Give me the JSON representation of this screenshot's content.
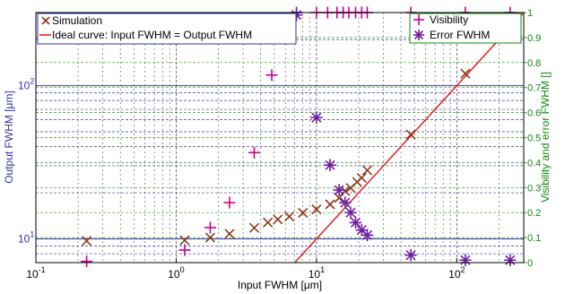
{
  "chart_data": {
    "type": "scatter",
    "xlabel": "Input FWHM [μm]",
    "ylabel_left": "Output FWHM [μm]",
    "ylabel_right": "Visibility and error FWHM []",
    "x_scale": "log",
    "y_left_scale": "log",
    "xlim": [
      0.1,
      300
    ],
    "ylim_left": [
      7,
      300
    ],
    "ylim_right": [
      0,
      1
    ],
    "grid": true,
    "x_ticks": [
      {
        "value": 0.1,
        "base": "10",
        "exp": "-1"
      },
      {
        "value": 1,
        "base": "10",
        "exp": "0"
      },
      {
        "value": 10,
        "base": "10",
        "exp": "1"
      },
      {
        "value": 100,
        "base": "10",
        "exp": "2"
      }
    ],
    "y_left_ticks": [
      {
        "value": 10,
        "base": "10",
        "exp": "1"
      },
      {
        "value": 100,
        "base": "10",
        "exp": "2"
      }
    ],
    "y_right_ticks": [
      "0",
      "0.1",
      "0.2",
      "0.3",
      "0.4",
      "0.5",
      "0.6",
      "0.7",
      "0.8",
      "0.9",
      "1"
    ],
    "legend_left": [
      {
        "label": "Simulation",
        "marker": "x",
        "color": "#8b3a1a"
      },
      {
        "label": "Ideal curve: Input FWHM = Output FWHM",
        "marker": "line",
        "color": "#e02020"
      }
    ],
    "legend_right": [
      {
        "label": "Visibility",
        "marker": "plus",
        "color": "#c8008c"
      },
      {
        "label": "Error FWHM",
        "marker": "star",
        "color": "#6e1fa0"
      }
    ],
    "series": [
      {
        "name": "Simulation",
        "axis": "left",
        "marker": "x",
        "color": "#8b3a1a",
        "points": [
          [
            0.23,
            9.7
          ],
          [
            1.15,
            9.8
          ],
          [
            1.75,
            10.2
          ],
          [
            2.4,
            10.8
          ],
          [
            3.6,
            11.8
          ],
          [
            4.5,
            12.8
          ],
          [
            5.3,
            13.4
          ],
          [
            6.4,
            14.0
          ],
          [
            8.0,
            14.8
          ],
          [
            10.0,
            15.6
          ],
          [
            12.5,
            16.8
          ],
          [
            14.5,
            18.5
          ],
          [
            16.0,
            20.5
          ],
          [
            17.5,
            21.5
          ],
          [
            19.5,
            23.5
          ],
          [
            21.0,
            25.0
          ],
          [
            23.0,
            28.0
          ],
          [
            47.0,
            48.0
          ],
          [
            115.0,
            120.0
          ],
          [
            240.0,
            250.0
          ]
        ]
      },
      {
        "name": "Ideal curve: Input FWHM = Output FWHM",
        "axis": "left",
        "marker": "line",
        "color": "#e02020",
        "points": [
          [
            7,
            7
          ],
          [
            300,
            300
          ]
        ]
      },
      {
        "name": "Visibility",
        "axis": "right",
        "marker": "plus",
        "color": "#c8008c",
        "points": [
          [
            0.23,
            0.005
          ],
          [
            1.15,
            0.05
          ],
          [
            1.75,
            0.14
          ],
          [
            2.4,
            0.24
          ],
          [
            3.6,
            0.44
          ],
          [
            4.8,
            0.75
          ],
          [
            6.0,
            0.96
          ],
          [
            7.2,
            1.0
          ],
          [
            10.0,
            1.0
          ],
          [
            12.0,
            1.0
          ],
          [
            14.0,
            1.0
          ],
          [
            15.5,
            1.0
          ],
          [
            17.0,
            1.0
          ],
          [
            19.0,
            1.0
          ],
          [
            21.0,
            1.0
          ],
          [
            23.0,
            1.0
          ],
          [
            47.0,
            1.0
          ],
          [
            115.0,
            1.0
          ],
          [
            240.0,
            1.0
          ]
        ]
      },
      {
        "name": "Error FWHM",
        "axis": "right",
        "marker": "star",
        "color": "#6e1fa0",
        "points": [
          [
            7.2,
            0.99
          ],
          [
            10.0,
            0.58
          ],
          [
            12.5,
            0.39
          ],
          [
            14.5,
            0.29
          ],
          [
            16.0,
            0.24
          ],
          [
            17.5,
            0.2
          ],
          [
            19.0,
            0.16
          ],
          [
            21.0,
            0.13
          ],
          [
            23.0,
            0.11
          ],
          [
            47.0,
            0.03
          ],
          [
            115.0,
            0.01
          ],
          [
            240.0,
            0.01
          ]
        ]
      }
    ]
  }
}
